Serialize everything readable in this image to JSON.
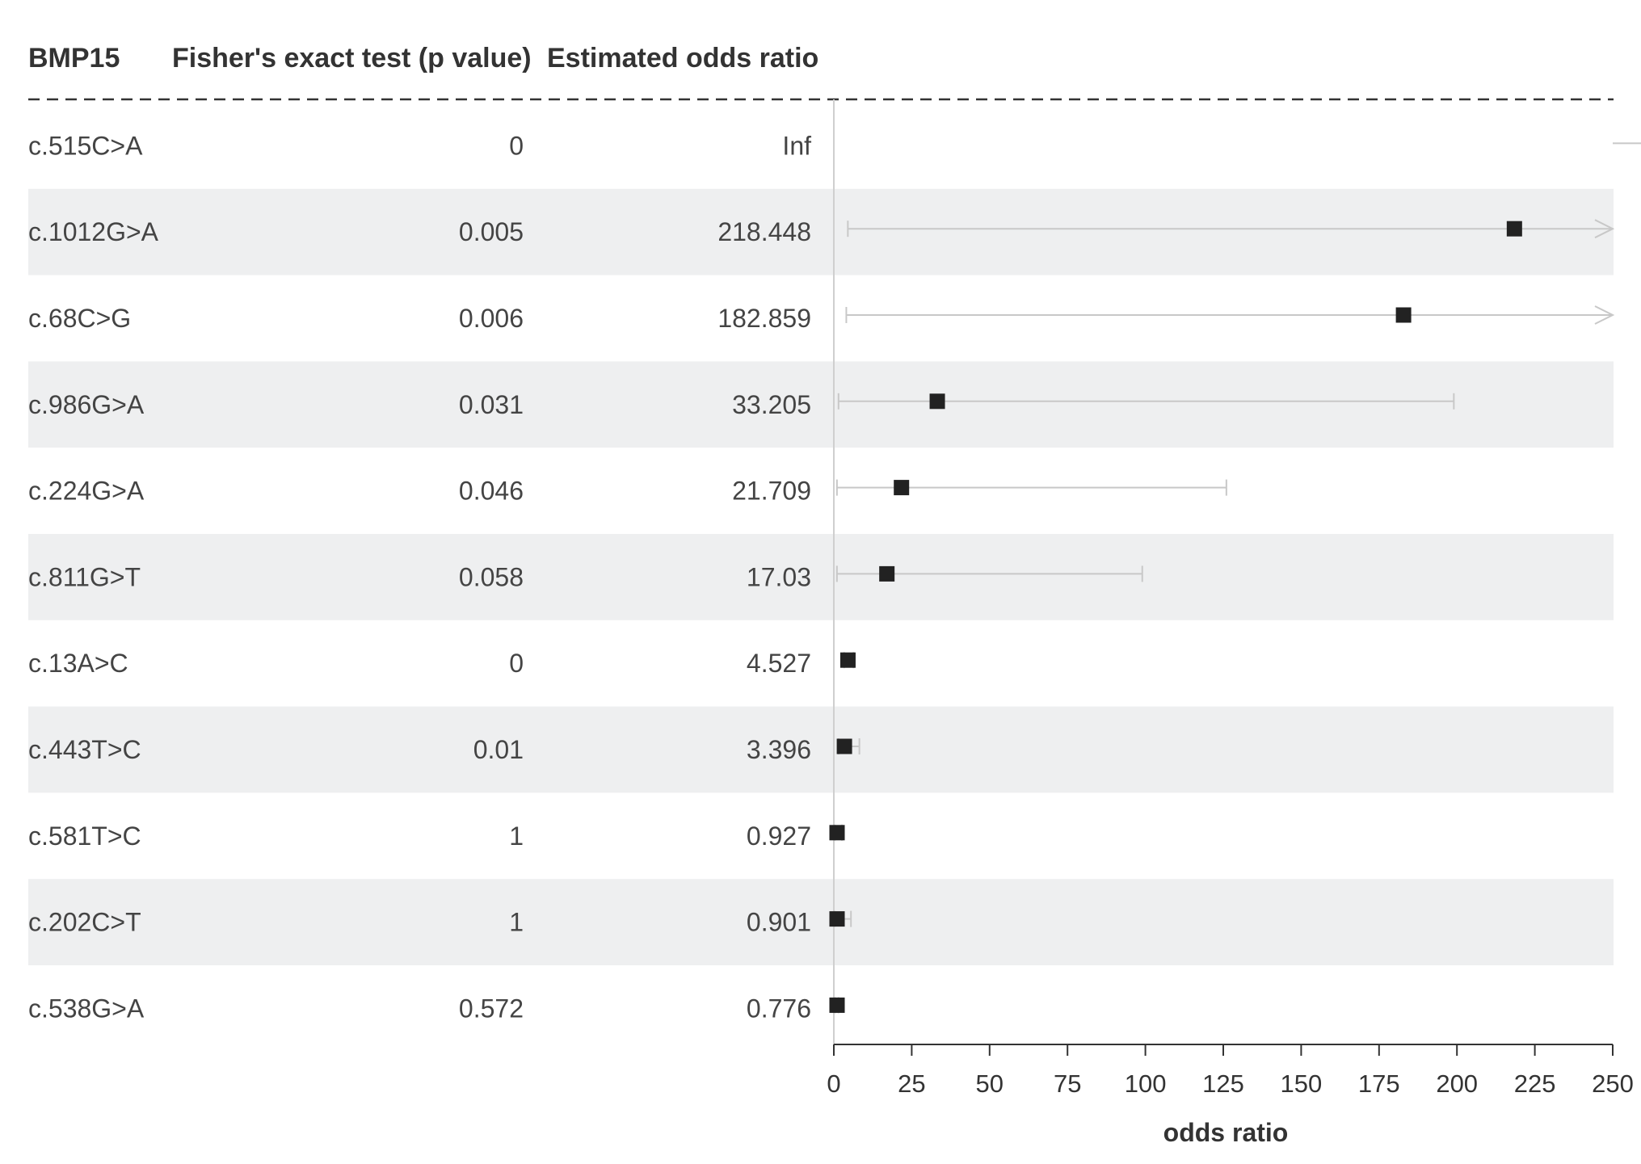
{
  "chart_data": {
    "type": "forest",
    "columns": {
      "label": "BMP15",
      "p_value": "Fisher's exact test (p value)",
      "odds_ratio": "Estimated odds ratio"
    },
    "rows": [
      {
        "variant": "c.515C>A",
        "p_value": "0",
        "odds_ratio_text": "Inf",
        "estimate": null,
        "ci_low": null,
        "ci_high": null,
        "ci_high_truncated": true
      },
      {
        "variant": "c.1012G>A",
        "p_value": "0.005",
        "odds_ratio_text": "218.448",
        "estimate": 218.448,
        "ci_low": 4.5,
        "ci_high": 250,
        "ci_high_truncated": true
      },
      {
        "variant": "c.68C>G",
        "p_value": "0.006",
        "odds_ratio_text": "182.859",
        "estimate": 182.859,
        "ci_low": 4,
        "ci_high": 250,
        "ci_high_truncated": true
      },
      {
        "variant": "c.986G>A",
        "p_value": "0.031",
        "odds_ratio_text": "33.205",
        "estimate": 33.205,
        "ci_low": 1.5,
        "ci_high": 199,
        "ci_high_truncated": false
      },
      {
        "variant": "c.224G>A",
        "p_value": "0.046",
        "odds_ratio_text": "21.709",
        "estimate": 21.709,
        "ci_low": 1,
        "ci_high": 126,
        "ci_high_truncated": false
      },
      {
        "variant": "c.811G>T",
        "p_value": "0.058",
        "odds_ratio_text": "17.03",
        "estimate": 17.03,
        "ci_low": 1,
        "ci_high": 99,
        "ci_high_truncated": false
      },
      {
        "variant": "c.13A>C",
        "p_value": "0",
        "odds_ratio_text": "4.527",
        "estimate": 4.527,
        "ci_low": 3.3,
        "ci_high": 6.3,
        "ci_high_truncated": false
      },
      {
        "variant": "c.443T>C",
        "p_value": "0.01",
        "odds_ratio_text": "3.396",
        "estimate": 3.396,
        "ci_low": 1.5,
        "ci_high": 8.2,
        "ci_high_truncated": false
      },
      {
        "variant": "c.581T>C",
        "p_value": "1",
        "odds_ratio_text": "0.927",
        "estimate": 0.927,
        "ci_low": 0.3,
        "ci_high": 2.6,
        "ci_high_truncated": false
      },
      {
        "variant": "c.202C>T",
        "p_value": "1",
        "odds_ratio_text": "0.901",
        "estimate": 0.901,
        "ci_low": 0.2,
        "ci_high": 5.5,
        "ci_high_truncated": false
      },
      {
        "variant": "c.538G>A",
        "p_value": "0.572",
        "odds_ratio_text": "0.776",
        "estimate": 0.776,
        "ci_low": 0.4,
        "ci_high": 1.5,
        "ci_high_truncated": false
      }
    ],
    "x_axis": {
      "label": "odds ratio",
      "min": 0,
      "max": 250,
      "ticks": [
        "0",
        "25",
        "50",
        "75",
        "100",
        "125",
        "150",
        "175",
        "200",
        "225",
        "250"
      ]
    },
    "reference_line": 0,
    "row_shading": "alternating",
    "colors": {
      "point": "#222222",
      "ci_line": "#c8c8c8",
      "stripe": "#eeeff0",
      "text": "#444444",
      "axis": "#333333"
    }
  }
}
